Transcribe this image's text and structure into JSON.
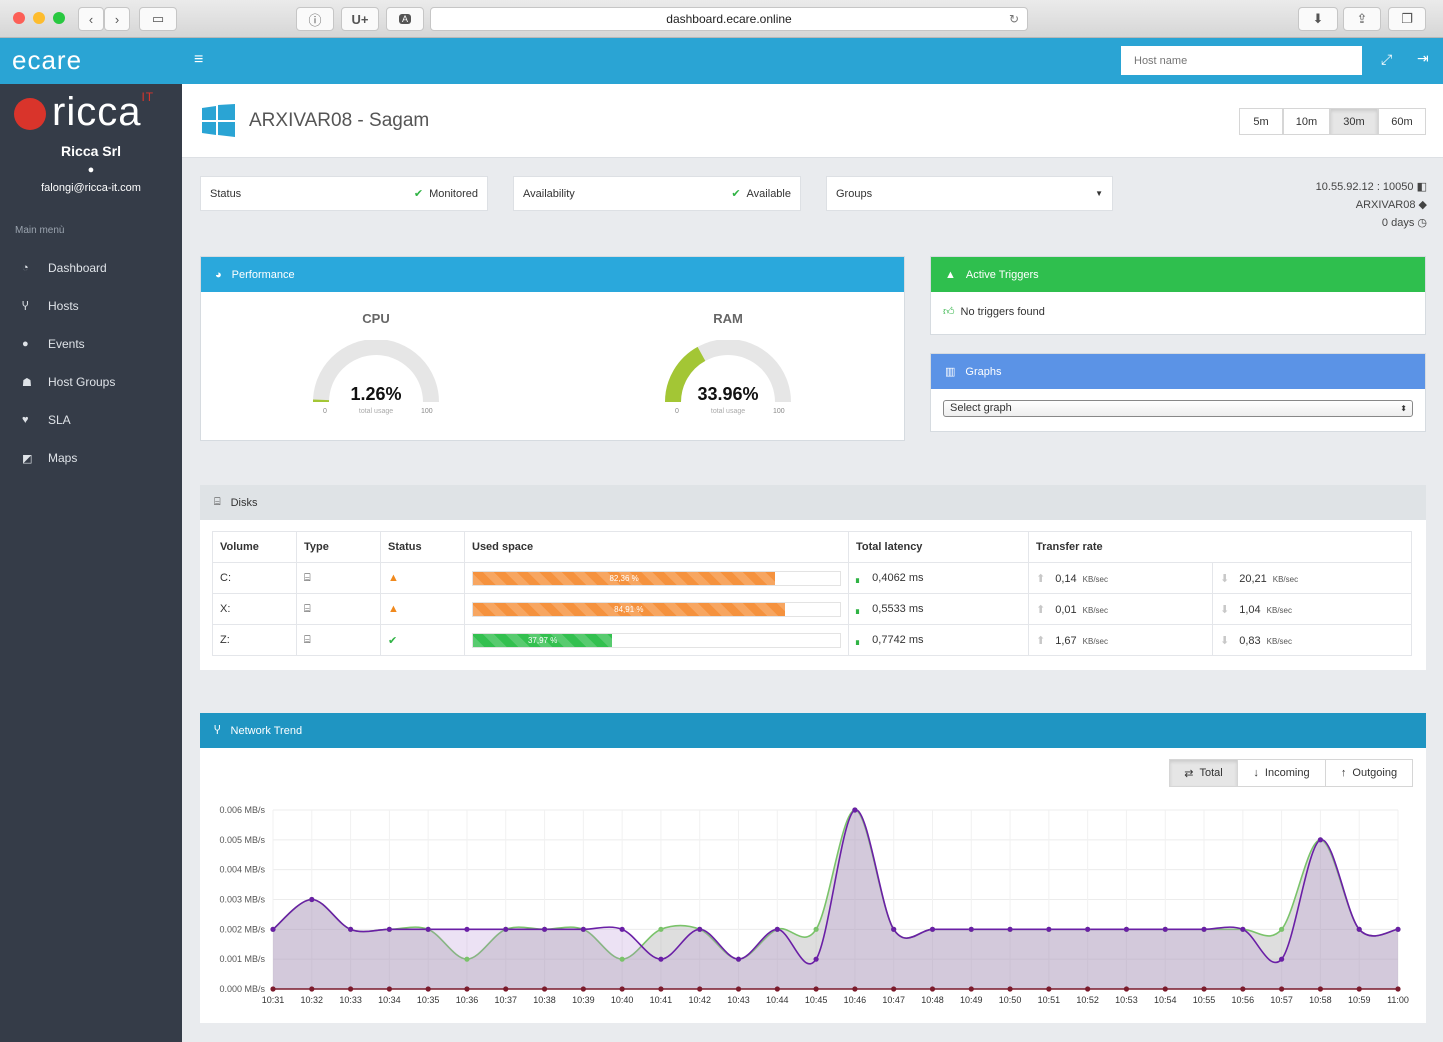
{
  "browser": {
    "url": "dashboard.ecare.online",
    "ext1": "U+",
    "ext2": "A"
  },
  "app": {
    "logo": "ecare",
    "host_search_placeholder": "Host name"
  },
  "sidebar": {
    "brand": "ricca",
    "brand_sup": "IT",
    "company": "Ricca Srl",
    "email": "falongi@ricca-it.com",
    "menu_title": "Main menù",
    "items": [
      {
        "label": "Dashboard",
        "icon": "gauge-icon"
      },
      {
        "label": "Hosts",
        "icon": "branch-icon"
      },
      {
        "label": "Events",
        "icon": "info-circle-icon"
      },
      {
        "label": "Host Groups",
        "icon": "sitemap-icon"
      },
      {
        "label": "SLA",
        "icon": "heartbeat-icon"
      },
      {
        "label": "Maps",
        "icon": "share-icon"
      }
    ]
  },
  "header": {
    "title": "ARXIVAR08 - Sagam",
    "time_ranges": [
      "5m",
      "10m",
      "30m",
      "60m"
    ],
    "active_range": "30m"
  },
  "info": {
    "status_label": "Status",
    "status_value": "Monitored",
    "availability_label": "Availability",
    "availability_value": "Available",
    "groups_label": "Groups",
    "address": "10.55.92.12 : 10050",
    "host": "ARXIVAR08",
    "uptime": "0 days"
  },
  "performance": {
    "title": "Performance",
    "cpu": {
      "label": "CPU",
      "value": "1.26%",
      "percent": 1.26,
      "sub": "total usage",
      "min": "0",
      "max": "100"
    },
    "ram": {
      "label": "RAM",
      "value": "33.96%",
      "percent": 33.96,
      "sub": "total usage",
      "min": "0",
      "max": "100"
    }
  },
  "triggers": {
    "title": "Active Triggers",
    "message": "No triggers found"
  },
  "graphs": {
    "title": "Graphs",
    "select_label": "Select graph"
  },
  "disks": {
    "title": "Disks",
    "columns": [
      "Volume",
      "Type",
      "Status",
      "Used space",
      "Total latency",
      "Transfer rate"
    ],
    "rows": [
      {
        "volume": "C:",
        "status": "warning",
        "used": "82,36 %",
        "used_pct": 82.36,
        "latency": "0,4062 ms",
        "out_rate": "0,14",
        "in_rate": "20,21",
        "unit": "KB/sec"
      },
      {
        "volume": "X:",
        "status": "warning",
        "used": "84,91 %",
        "used_pct": 84.91,
        "latency": "0,5533 ms",
        "out_rate": "0,01",
        "in_rate": "1,04",
        "unit": "KB/sec"
      },
      {
        "volume": "Z:",
        "status": "ok",
        "used": "37,97 %",
        "used_pct": 37.97,
        "latency": "0,7742 ms",
        "out_rate": "1,67",
        "in_rate": "0,83",
        "unit": "KB/sec"
      }
    ]
  },
  "network": {
    "title": "Network Trend",
    "buttons": [
      "Total",
      "Incoming",
      "Outgoing"
    ]
  },
  "chart_data": {
    "type": "line",
    "x": [
      "10:31",
      "10:32",
      "10:33",
      "10:34",
      "10:35",
      "10:36",
      "10:37",
      "10:38",
      "10:39",
      "10:40",
      "10:41",
      "10:42",
      "10:43",
      "10:44",
      "10:45",
      "10:46",
      "10:47",
      "10:48",
      "10:49",
      "10:50",
      "10:51",
      "10:52",
      "10:53",
      "10:54",
      "10:55",
      "10:56",
      "10:57",
      "10:58",
      "10:59",
      "11:00"
    ],
    "yticks": [
      "0.000 MB/s",
      "0.001 MB/s",
      "0.002 MB/s",
      "0.003 MB/s",
      "0.004 MB/s",
      "0.005 MB/s",
      "0.006 MB/s"
    ],
    "ylim": [
      0,
      0.006
    ],
    "series": [
      {
        "color": "#7ac36a",
        "values": [
          0.002,
          0.003,
          0.002,
          0.002,
          0.002,
          0.001,
          0.002,
          0.002,
          0.002,
          0.001,
          0.002,
          0.002,
          0.001,
          0.002,
          0.002,
          0.006,
          0.002,
          0.002,
          0.002,
          0.002,
          0.002,
          0.002,
          0.002,
          0.002,
          0.002,
          0.002,
          0.002,
          0.005,
          0.002,
          0.002
        ]
      },
      {
        "color": "#6a1fa6",
        "values": [
          0.002,
          0.003,
          0.002,
          0.002,
          0.002,
          0.002,
          0.002,
          0.002,
          0.002,
          0.002,
          0.001,
          0.002,
          0.001,
          0.002,
          0.001,
          0.006,
          0.002,
          0.002,
          0.002,
          0.002,
          0.002,
          0.002,
          0.002,
          0.002,
          0.002,
          0.002,
          0.001,
          0.005,
          0.002,
          0.002
        ]
      },
      {
        "color": "#7b1b2c",
        "values": [
          0,
          0,
          0,
          0,
          0,
          0,
          0,
          0,
          0,
          0,
          0,
          0,
          0,
          0,
          0,
          0,
          0,
          0,
          0,
          0,
          0,
          0,
          0,
          0,
          0,
          0,
          0,
          0,
          0,
          0
        ]
      }
    ]
  }
}
